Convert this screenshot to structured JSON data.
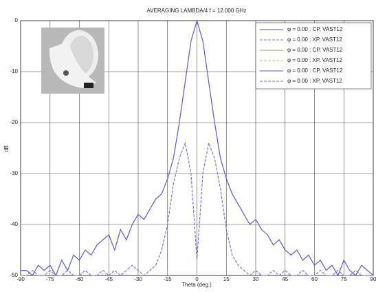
{
  "chart_data": {
    "type": "line",
    "title": "AVERAGING LAMBDA/4   f = 12.000 GHz",
    "x_label": "Theta (deg.)",
    "y_label": "dB",
    "x": [
      -90,
      -87,
      -84,
      -81,
      -78,
      -75,
      -72,
      -69,
      -66,
      -63,
      -60,
      -57,
      -54,
      -51,
      -48,
      -45,
      -42,
      -39,
      -36,
      -33,
      -30,
      -27,
      -24,
      -21,
      -18,
      -15,
      -12,
      -9,
      -6,
      -3,
      0,
      3,
      6,
      9,
      12,
      15,
      18,
      21,
      24,
      27,
      30,
      33,
      36,
      39,
      42,
      45,
      48,
      51,
      54,
      57,
      60,
      63,
      66,
      69,
      72,
      75,
      78,
      81,
      84,
      87,
      90
    ],
    "series": [
      {
        "name": "φ = 0.00 : CP, VAST12",
        "color": "#4a4ad8",
        "dashed": false,
        "values": [
          -49,
          -49,
          -50,
          -48,
          -49,
          -48,
          -50,
          -47,
          -49,
          -46,
          -47,
          -45,
          -46,
          -44,
          -43,
          -42,
          -45,
          -41,
          -43,
          -40,
          -38,
          -39,
          -37,
          -35,
          -34,
          -31,
          -27,
          -20,
          -12,
          -4,
          0,
          -4,
          -12,
          -20,
          -27,
          -31,
          -34,
          -36,
          -38,
          -40,
          -39,
          -41,
          -42,
          -44,
          -43,
          -45,
          -46,
          -45,
          -47,
          -46,
          -48,
          -47,
          -49,
          -48,
          -50,
          -47,
          -49,
          -50,
          -48,
          -49,
          -50
        ]
      },
      {
        "name": "φ = 0.00 : XP, VAST12",
        "color": "#8a70c8",
        "dashed": true,
        "values": [
          -50,
          -50,
          -49,
          -50,
          -50,
          -49,
          -50,
          -50,
          -49,
          -50,
          -50,
          -49,
          -50,
          -50,
          -49,
          -50,
          -49,
          -50,
          -49,
          -48,
          -49,
          -50,
          -49,
          -48,
          -45,
          -40,
          -32,
          -27,
          -24,
          -30,
          -47,
          -30,
          -24,
          -27,
          -33,
          -41,
          -46,
          -48,
          -49,
          -50,
          -49,
          -50,
          -50,
          -49,
          -50,
          -49,
          -50,
          -50,
          -49,
          -50,
          -50,
          -49,
          -50,
          -50,
          -49,
          -50,
          -50,
          -49,
          -50,
          -50,
          -50
        ]
      },
      {
        "name": "φ = 0.00 : CP, VAST12",
        "color": "#9a9a60",
        "dashed": false,
        "values": [
          -49,
          -49,
          -50,
          -48,
          -49,
          -48,
          -50,
          -47,
          -49,
          -46,
          -47,
          -45,
          -46,
          -44,
          -43,
          -42,
          -45,
          -41,
          -43,
          -40,
          -38,
          -39,
          -37,
          -35,
          -34,
          -31,
          -27,
          -20,
          -12,
          -4,
          0,
          -4,
          -12,
          -20,
          -27,
          -31,
          -34,
          -36,
          -38,
          -40,
          -39,
          -41,
          -42,
          -44,
          -43,
          -45,
          -46,
          -45,
          -47,
          -46,
          -48,
          -47,
          -49,
          -48,
          -50,
          -47,
          -49,
          -50,
          -48,
          -49,
          -50
        ]
      },
      {
        "name": "φ = 0.00 : XP, VAST12",
        "color": "#c8c070",
        "dashed": true,
        "values": [
          -50,
          -50,
          -49,
          -50,
          -50,
          -49,
          -50,
          -50,
          -49,
          -50,
          -50,
          -49,
          -50,
          -50,
          -49,
          -50,
          -49,
          -50,
          -49,
          -48,
          -49,
          -50,
          -49,
          -48,
          -45,
          -40,
          -32,
          -27,
          -24,
          -30,
          -47,
          -30,
          -24,
          -27,
          -33,
          -41,
          -46,
          -48,
          -49,
          -50,
          -49,
          -50,
          -50,
          -49,
          -50,
          -49,
          -50,
          -50,
          -49,
          -50,
          -50,
          -49,
          -50,
          -50,
          -49,
          -50,
          -50,
          -49,
          -50,
          -50,
          -50
        ]
      },
      {
        "name": "φ = 0.00 : CP, VAST12",
        "color": "#5858e0",
        "dashed": false,
        "values": [
          -49,
          -49,
          -50,
          -48,
          -49,
          -48,
          -50,
          -47,
          -49,
          -46,
          -47,
          -45,
          -46,
          -44,
          -43,
          -42,
          -45,
          -41,
          -43,
          -40,
          -38,
          -39,
          -37,
          -35,
          -34,
          -31,
          -27,
          -20,
          -12,
          -4,
          0,
          -4,
          -12,
          -20,
          -27,
          -31,
          -34,
          -36,
          -38,
          -40,
          -39,
          -41,
          -42,
          -44,
          -43,
          -45,
          -46,
          -45,
          -47,
          -46,
          -48,
          -47,
          -49,
          -48,
          -50,
          -47,
          -49,
          -50,
          -48,
          -49,
          -50
        ]
      },
      {
        "name": "φ = 0.00 : XP, VAST12",
        "color": "#7070e0",
        "dashed": true,
        "values": [
          -50,
          -50,
          -49,
          -50,
          -50,
          -49,
          -50,
          -50,
          -49,
          -50,
          -50,
          -49,
          -50,
          -50,
          -49,
          -50,
          -49,
          -50,
          -49,
          -48,
          -49,
          -50,
          -49,
          -48,
          -45,
          -40,
          -32,
          -27,
          -24,
          -30,
          -47,
          -30,
          -24,
          -27,
          -33,
          -41,
          -46,
          -48,
          -49,
          -50,
          -49,
          -50,
          -50,
          -49,
          -50,
          -49,
          -50,
          -50,
          -49,
          -50,
          -50,
          -49,
          -50,
          -50,
          -49,
          -50,
          -50,
          -49,
          -50,
          -50,
          -50
        ]
      }
    ],
    "xlim": [
      -90,
      90
    ],
    "xticks": [
      -90,
      -75,
      -60,
      -45,
      -30,
      -15,
      0,
      15,
      30,
      45,
      60,
      75,
      90
    ],
    "ylim": [
      -50,
      0
    ],
    "yticks": [
      -50,
      -40,
      -30,
      -20,
      -10,
      0
    ],
    "grid": true,
    "legend": "upper right"
  }
}
